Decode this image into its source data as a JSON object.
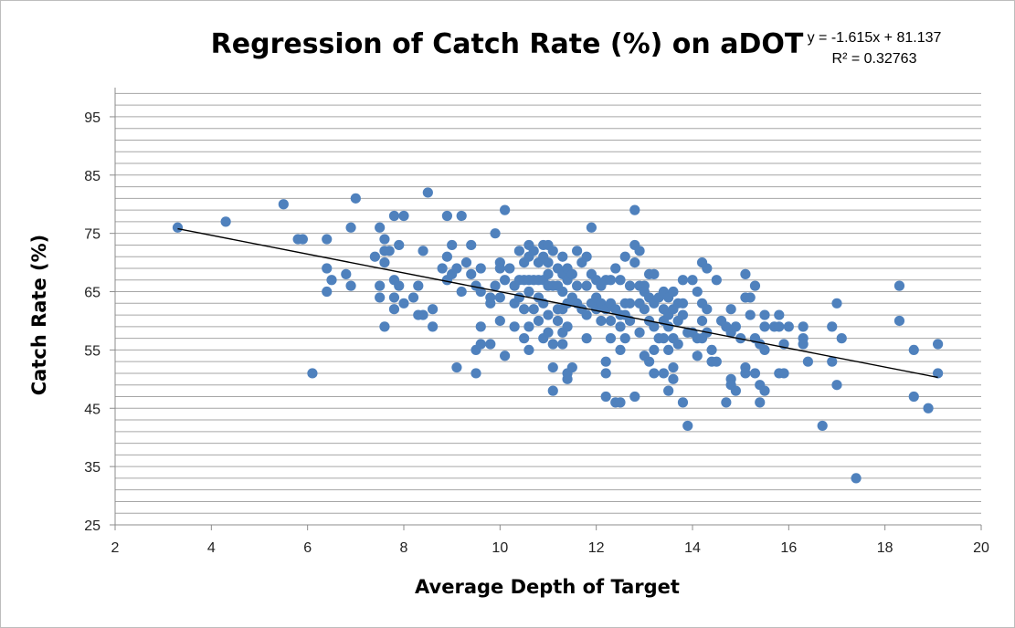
{
  "chart_data": {
    "type": "scatter",
    "title": "Regression of Catch Rate (%) on aDOT",
    "xlabel": "Average Depth of Target",
    "ylabel": "Catch Rate (%)",
    "xlim": [
      2,
      20
    ],
    "ylim": [
      25,
      100
    ],
    "x_ticks": [
      2,
      4,
      6,
      8,
      10,
      12,
      14,
      16,
      18,
      20
    ],
    "y_ticks": [
      25,
      35,
      45,
      55,
      65,
      75,
      85,
      95
    ],
    "minor_grid_step": 2,
    "grid": true,
    "marker_color": "#4f81bd",
    "trendline": {
      "equation": "y = -1.615x + 81.137",
      "r_squared": "R² = 0.32763",
      "slope": -1.615,
      "intercept": 81.137,
      "x_range": [
        3.3,
        19.1
      ],
      "color": "#000000"
    },
    "points": [
      [
        3.3,
        76
      ],
      [
        4.3,
        77
      ],
      [
        5.5,
        80
      ],
      [
        5.8,
        74
      ],
      [
        5.9,
        74
      ],
      [
        6.1,
        51
      ],
      [
        6.4,
        74
      ],
      [
        6.4,
        69
      ],
      [
        6.4,
        65
      ],
      [
        6.5,
        67
      ],
      [
        6.8,
        68
      ],
      [
        6.9,
        66
      ],
      [
        6.9,
        76
      ],
      [
        7.0,
        81
      ],
      [
        7.4,
        71
      ],
      [
        7.5,
        76
      ],
      [
        7.5,
        66
      ],
      [
        7.5,
        64
      ],
      [
        7.6,
        74
      ],
      [
        7.6,
        72
      ],
      [
        7.6,
        70
      ],
      [
        7.6,
        59
      ],
      [
        7.7,
        72
      ],
      [
        7.8,
        78
      ],
      [
        7.8,
        67
      ],
      [
        7.8,
        64
      ],
      [
        7.8,
        62
      ],
      [
        7.9,
        73
      ],
      [
        7.9,
        66
      ],
      [
        8.0,
        78
      ],
      [
        8.0,
        63
      ],
      [
        8.2,
        64
      ],
      [
        8.3,
        66
      ],
      [
        8.3,
        61
      ],
      [
        8.4,
        72
      ],
      [
        8.4,
        61
      ],
      [
        8.5,
        82
      ],
      [
        8.6,
        62
      ],
      [
        8.6,
        59
      ],
      [
        8.8,
        69
      ],
      [
        8.9,
        78
      ],
      [
        8.9,
        71
      ],
      [
        8.9,
        67
      ],
      [
        9.0,
        73
      ],
      [
        9.0,
        68
      ],
      [
        9.1,
        69
      ],
      [
        9.1,
        52
      ],
      [
        9.2,
        78
      ],
      [
        9.2,
        65
      ],
      [
        9.3,
        70
      ],
      [
        9.4,
        73
      ],
      [
        9.4,
        68
      ],
      [
        9.5,
        66
      ],
      [
        9.5,
        55
      ],
      [
        9.5,
        51
      ],
      [
        9.6,
        69
      ],
      [
        9.6,
        65
      ],
      [
        9.6,
        59
      ],
      [
        9.6,
        56
      ],
      [
        9.8,
        56
      ],
      [
        9.8,
        63
      ],
      [
        9.8,
        64
      ],
      [
        9.9,
        75
      ],
      [
        9.9,
        66
      ],
      [
        10.0,
        70
      ],
      [
        10.0,
        69
      ],
      [
        10.0,
        64
      ],
      [
        10.0,
        60
      ],
      [
        10.1,
        79
      ],
      [
        10.1,
        67
      ],
      [
        10.1,
        54
      ],
      [
        10.2,
        69
      ],
      [
        10.3,
        66
      ],
      [
        10.3,
        63
      ],
      [
        10.3,
        59
      ],
      [
        10.4,
        72
      ],
      [
        10.4,
        67
      ],
      [
        10.4,
        64
      ],
      [
        10.5,
        70
      ],
      [
        10.5,
        67
      ],
      [
        10.5,
        62
      ],
      [
        10.5,
        57
      ],
      [
        10.6,
        73
      ],
      [
        10.6,
        71
      ],
      [
        10.6,
        67
      ],
      [
        10.6,
        65
      ],
      [
        10.6,
        59
      ],
      [
        10.6,
        55
      ],
      [
        10.7,
        72
      ],
      [
        10.7,
        67
      ],
      [
        10.7,
        62
      ],
      [
        10.8,
        70
      ],
      [
        10.8,
        67
      ],
      [
        10.8,
        64
      ],
      [
        10.8,
        60
      ],
      [
        10.9,
        73
      ],
      [
        10.9,
        71
      ],
      [
        10.9,
        67
      ],
      [
        10.9,
        63
      ],
      [
        10.9,
        57
      ],
      [
        11.0,
        73
      ],
      [
        11.0,
        70
      ],
      [
        11.0,
        68
      ],
      [
        11.0,
        66
      ],
      [
        11.0,
        61
      ],
      [
        11.0,
        58
      ],
      [
        11.1,
        72
      ],
      [
        11.1,
        66
      ],
      [
        11.1,
        56
      ],
      [
        11.1,
        52
      ],
      [
        11.1,
        48
      ],
      [
        11.2,
        69
      ],
      [
        11.2,
        66
      ],
      [
        11.2,
        62
      ],
      [
        11.2,
        60
      ],
      [
        11.3,
        71
      ],
      [
        11.3,
        68
      ],
      [
        11.3,
        65
      ],
      [
        11.3,
        62
      ],
      [
        11.3,
        58
      ],
      [
        11.3,
        56
      ],
      [
        11.4,
        69
      ],
      [
        11.4,
        67
      ],
      [
        11.4,
        63
      ],
      [
        11.4,
        59
      ],
      [
        11.4,
        51
      ],
      [
        11.4,
        50
      ],
      [
        11.5,
        68
      ],
      [
        11.5,
        64
      ],
      [
        11.5,
        52
      ],
      [
        11.6,
        72
      ],
      [
        11.6,
        66
      ],
      [
        11.6,
        63
      ],
      [
        11.7,
        70
      ],
      [
        11.7,
        62
      ],
      [
        11.8,
        71
      ],
      [
        11.8,
        66
      ],
      [
        11.8,
        61
      ],
      [
        11.8,
        57
      ],
      [
        11.9,
        76
      ],
      [
        11.9,
        68
      ],
      [
        11.9,
        63
      ],
      [
        12.0,
        67
      ],
      [
        12.0,
        64
      ],
      [
        12.0,
        62
      ],
      [
        12.1,
        66
      ],
      [
        12.1,
        63
      ],
      [
        12.1,
        60
      ],
      [
        12.2,
        67
      ],
      [
        12.2,
        62
      ],
      [
        12.2,
        53
      ],
      [
        12.2,
        51
      ],
      [
        12.2,
        47
      ],
      [
        12.3,
        67
      ],
      [
        12.3,
        63
      ],
      [
        12.3,
        60
      ],
      [
        12.3,
        57
      ],
      [
        12.4,
        69
      ],
      [
        12.4,
        62
      ],
      [
        12.4,
        46
      ],
      [
        12.5,
        67
      ],
      [
        12.5,
        61
      ],
      [
        12.5,
        59
      ],
      [
        12.5,
        55
      ],
      [
        12.5,
        46
      ],
      [
        12.6,
        71
      ],
      [
        12.6,
        63
      ],
      [
        12.6,
        61
      ],
      [
        12.6,
        57
      ],
      [
        12.7,
        66
      ],
      [
        12.7,
        63
      ],
      [
        12.7,
        60
      ],
      [
        12.8,
        79
      ],
      [
        12.8,
        73
      ],
      [
        12.8,
        70
      ],
      [
        12.8,
        47
      ],
      [
        12.9,
        72
      ],
      [
        12.9,
        66
      ],
      [
        12.9,
        63
      ],
      [
        12.9,
        58
      ],
      [
        13.0,
        66
      ],
      [
        13.0,
        65
      ],
      [
        13.0,
        62
      ],
      [
        13.0,
        54
      ],
      [
        13.1,
        68
      ],
      [
        13.1,
        64
      ],
      [
        13.1,
        60
      ],
      [
        13.1,
        53
      ],
      [
        13.2,
        68
      ],
      [
        13.2,
        63
      ],
      [
        13.2,
        59
      ],
      [
        13.2,
        55
      ],
      [
        13.2,
        51
      ],
      [
        13.3,
        64
      ],
      [
        13.3,
        57
      ],
      [
        13.4,
        65
      ],
      [
        13.4,
        62
      ],
      [
        13.4,
        60
      ],
      [
        13.4,
        57
      ],
      [
        13.4,
        51
      ],
      [
        13.5,
        64
      ],
      [
        13.5,
        61
      ],
      [
        13.5,
        59
      ],
      [
        13.5,
        55
      ],
      [
        13.5,
        48
      ],
      [
        13.6,
        65
      ],
      [
        13.6,
        62
      ],
      [
        13.6,
        57
      ],
      [
        13.6,
        52
      ],
      [
        13.6,
        50
      ],
      [
        13.7,
        63
      ],
      [
        13.7,
        60
      ],
      [
        13.7,
        56
      ],
      [
        13.8,
        67
      ],
      [
        13.8,
        63
      ],
      [
        13.8,
        61
      ],
      [
        13.8,
        46
      ],
      [
        13.9,
        58
      ],
      [
        13.9,
        42
      ],
      [
        14.0,
        67
      ],
      [
        14.0,
        58
      ],
      [
        14.1,
        65
      ],
      [
        14.1,
        57
      ],
      [
        14.1,
        54
      ],
      [
        14.2,
        70
      ],
      [
        14.2,
        63
      ],
      [
        14.2,
        60
      ],
      [
        14.2,
        57
      ],
      [
        14.3,
        69
      ],
      [
        14.3,
        62
      ],
      [
        14.3,
        58
      ],
      [
        14.4,
        55
      ],
      [
        14.4,
        53
      ],
      [
        14.5,
        67
      ],
      [
        14.5,
        53
      ],
      [
        14.6,
        60
      ],
      [
        14.7,
        59
      ],
      [
        14.7,
        46
      ],
      [
        14.8,
        62
      ],
      [
        14.8,
        58
      ],
      [
        14.8,
        50
      ],
      [
        14.8,
        49
      ],
      [
        14.9,
        59
      ],
      [
        14.9,
        48
      ],
      [
        15.0,
        57
      ],
      [
        15.1,
        68
      ],
      [
        15.1,
        64
      ],
      [
        15.1,
        52
      ],
      [
        15.1,
        51
      ],
      [
        15.2,
        64
      ],
      [
        15.2,
        61
      ],
      [
        15.3,
        66
      ],
      [
        15.3,
        57
      ],
      [
        15.3,
        51
      ],
      [
        15.4,
        56
      ],
      [
        15.4,
        49
      ],
      [
        15.4,
        46
      ],
      [
        15.5,
        61
      ],
      [
        15.5,
        59
      ],
      [
        15.5,
        55
      ],
      [
        15.5,
        48
      ],
      [
        15.7,
        59
      ],
      [
        15.8,
        61
      ],
      [
        15.8,
        59
      ],
      [
        15.8,
        51
      ],
      [
        15.9,
        56
      ],
      [
        15.9,
        51
      ],
      [
        16.0,
        59
      ],
      [
        16.3,
        59
      ],
      [
        16.3,
        57
      ],
      [
        16.3,
        56
      ],
      [
        16.4,
        53
      ],
      [
        16.7,
        42
      ],
      [
        16.9,
        59
      ],
      [
        16.9,
        53
      ],
      [
        17.0,
        63
      ],
      [
        17.0,
        49
      ],
      [
        17.1,
        57
      ],
      [
        17.4,
        33
      ],
      [
        18.3,
        66
      ],
      [
        18.3,
        60
      ],
      [
        18.6,
        55
      ],
      [
        18.6,
        47
      ],
      [
        18.9,
        45
      ],
      [
        19.1,
        56
      ],
      [
        19.1,
        51
      ]
    ]
  }
}
